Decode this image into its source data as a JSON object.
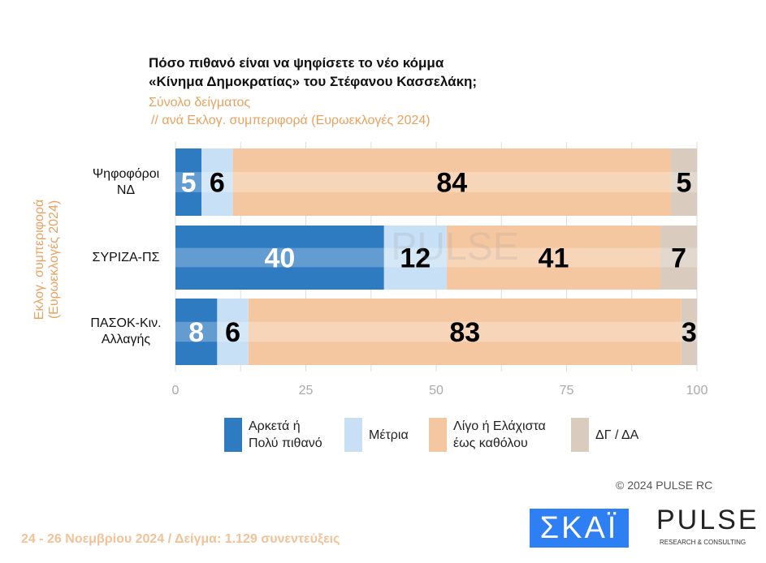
{
  "title": [
    "Πόσο πιθανό είναι να ψηφίσετε το νέο κόμμα",
    "«Κίνημα Δημοκρατίας» του Στέφανου Κασσελάκη;"
  ],
  "subtitle1": "Σύνολο δείγματος",
  "subtitle2": "// ανά Εκλογ. συμπεριφορά (Ευρωεκλογές 2024)",
  "ylabel": "Εκλογ. συμπεριφορά (Ευρωεκλογές 2024)",
  "footer": "24 - 26 Νοεμβρίου 2024  /  Δείγμα:  1.129 συνεντεύξεις",
  "copyright": "©  2024  PULSE RC",
  "logos": {
    "skai": "ΣΚΑΪ",
    "pulse": "PULSE",
    "pulse_sub": "RESEARCH & CONSULTING",
    "watermark": "PULSE"
  },
  "chart_data": {
    "type": "bar",
    "orientation": "horizontal",
    "stacked": true,
    "categories": [
      [
        "Ψηφοφόροι",
        "ΝΔ"
      ],
      [
        "ΣΥΡΙΖΑ-ΠΣ"
      ],
      [
        "ΠΑΣΟΚ-Κιν.",
        "Αλλαγής"
      ]
    ],
    "series": [
      {
        "name": "Αρκετά ή Πολύ πιθανό",
        "legend": [
          "Αρκετά ή",
          "Πολύ πιθανό"
        ],
        "color": "#2f7bc1",
        "label_color": "#ffffff",
        "values": [
          5,
          40,
          8
        ]
      },
      {
        "name": "Μέτρια",
        "legend": [
          "Μέτρια"
        ],
        "color": "#c7e0f6",
        "label_color": "#000000",
        "values": [
          6,
          12,
          6
        ]
      },
      {
        "name": "Λίγο ή Ελάχιστα έως καθόλου",
        "legend": [
          "Λίγο ή Ελάχιστα",
          "έως καθόλου"
        ],
        "color": "#f5c7a0",
        "label_color": "#000000",
        "values": [
          84,
          41,
          83
        ]
      },
      {
        "name": "ΔΓ / ΔΑ",
        "legend": [
          "ΔΓ / ΔΑ"
        ],
        "color": "#d9cbbd",
        "label_color": "#000000",
        "values": [
          5,
          7,
          3
        ]
      }
    ],
    "xlim": [
      0,
      100
    ],
    "xticks": [
      "0",
      "25",
      "50",
      "75",
      "100"
    ],
    "grid": true,
    "legend_position": "bottom"
  }
}
